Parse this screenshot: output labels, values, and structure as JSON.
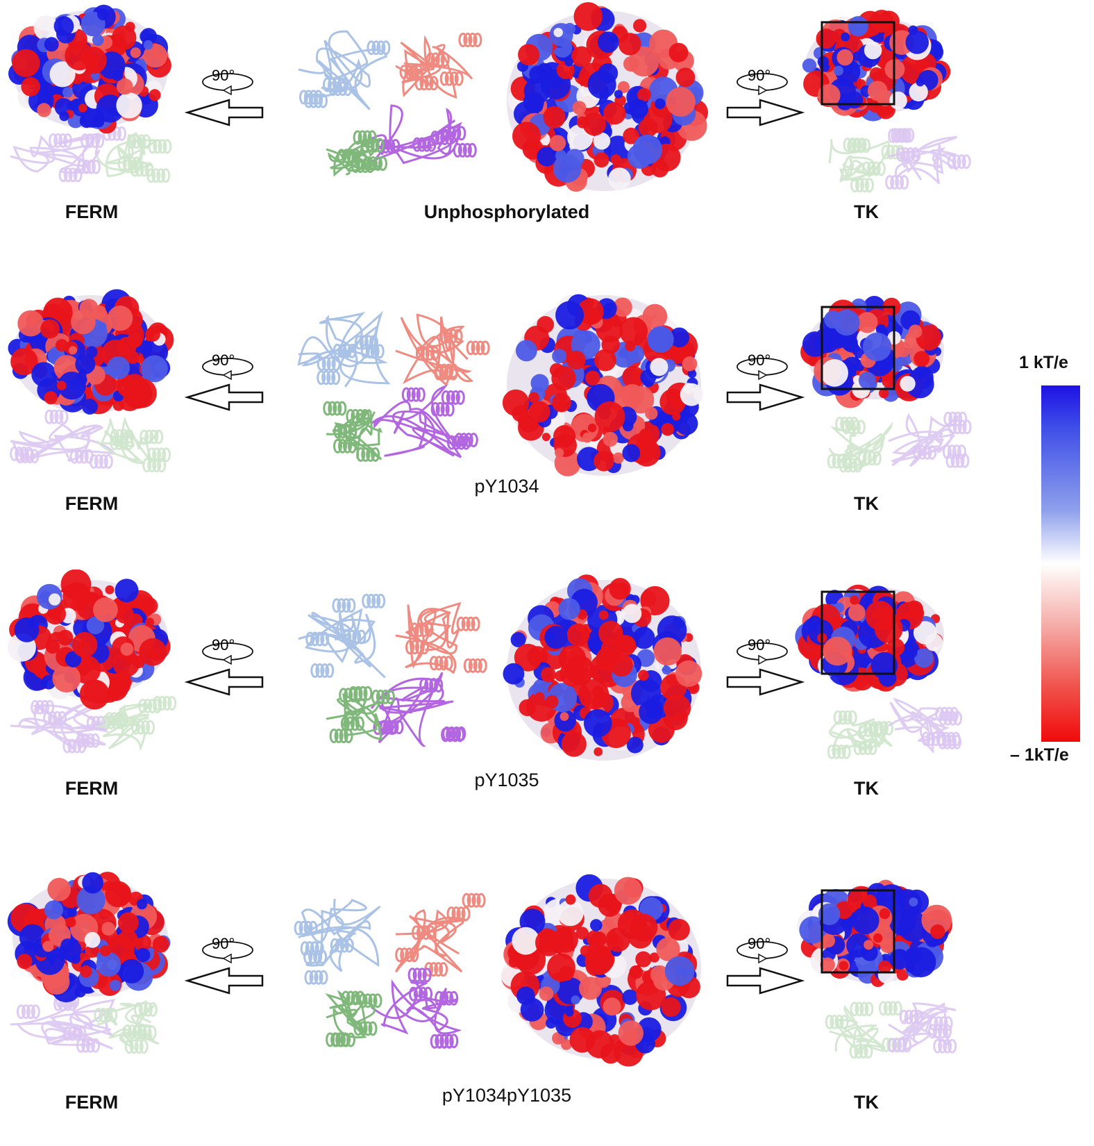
{
  "rows": [
    {
      "left_label": "FERM",
      "center_label": "Unphosphorylated",
      "right_label": "TK",
      "rotation_left": "90°",
      "rotation_right": "90°"
    },
    {
      "left_label": "FERM",
      "center_label": "pY1034",
      "right_label": "TK",
      "rotation_left": "90°",
      "rotation_right": "90°"
    },
    {
      "left_label": "FERM",
      "center_label": "pY1035",
      "right_label": "TK",
      "rotation_left": "90°",
      "rotation_right": "90°"
    },
    {
      "left_label": "FERM",
      "center_label": "pY1034pY1035",
      "right_label": "TK",
      "rotation_left": "90°",
      "rotation_right": "90°"
    }
  ],
  "colorbar": {
    "top_label": "1 kT/e",
    "bottom_label": "– 1kT/e",
    "positive_color": "#1f10e6",
    "neutral_color": "#ffffff",
    "negative_color": "#f00a0a"
  },
  "domain_colors": {
    "light_blue_domain": "#a9c2e6",
    "salmon_domain": "#ef8a80",
    "purple_domain": "#b266e0",
    "green_domain": "#7fb87a",
    "faded_purple": "#dcc6f2",
    "faded_green": "#cfe6cc"
  }
}
